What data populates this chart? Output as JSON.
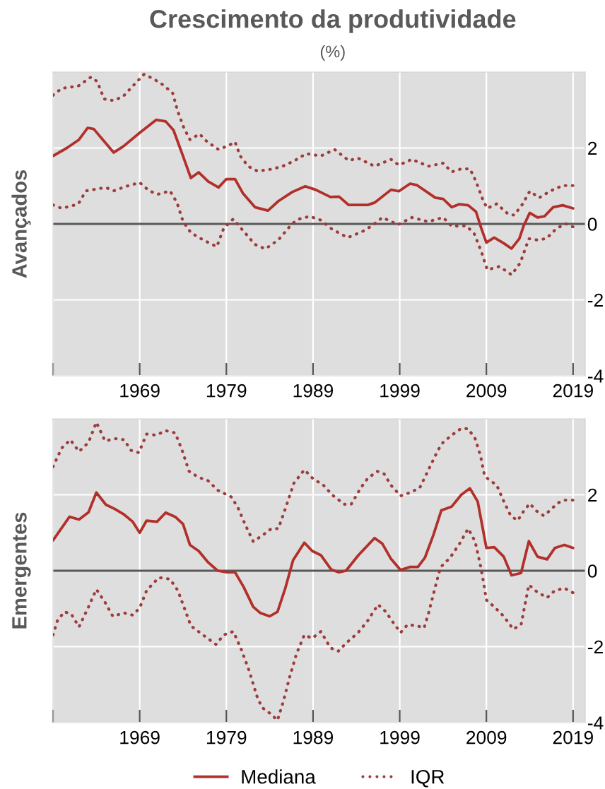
{
  "chart_data": [
    {
      "type": "line",
      "title": "Crescimento da produtividade",
      "subtitle": "(%)",
      "ylabel": "Avançados",
      "xlim": [
        1959,
        2020.4
      ],
      "xticks": [
        {
          "value": 1959,
          "label": null
        },
        1969,
        1979,
        1989,
        1999,
        2009,
        2019
      ],
      "ylim": [
        -4,
        4
      ],
      "yticks": [
        -4,
        -2,
        0,
        2
      ],
      "grid": true,
      "ref_lines": [
        {
          "axis": "y",
          "value": 0,
          "color": "#595959"
        }
      ],
      "series": [
        {
          "color": "#b22f2a",
          "line_style": "solid",
          "x": [
            1959,
            1960.6,
            1962.0,
            1963.0,
            1963.7,
            1966.0,
            1967.1,
            1969.0,
            1970.9,
            1972.0,
            1972.9,
            1973.9,
            1974.9,
            1975.8,
            1976.9,
            1978.1,
            1979.0,
            1980.0,
            1980.9,
            1982.3,
            1983.8,
            1985.0,
            1986.6,
            1988.1,
            1989.3,
            1991.0,
            1992.0,
            1993.1,
            1995.3,
            1996.1,
            1998.0,
            1998.9,
            2000.2,
            2001.0,
            2003.1,
            2004.0,
            2005.0,
            2005.9,
            2006.9,
            2007.8,
            2008.4,
            2009.0,
            2009.9,
            2011.0,
            2011.9,
            2012.8,
            2013.3,
            2014.0,
            2014.9,
            2015.7,
            2016.7,
            2017.8,
            2019.0
          ],
          "values": [
            1.79,
            2.0,
            2.22,
            2.53,
            2.5,
            1.88,
            2.04,
            2.4,
            2.74,
            2.7,
            2.47,
            1.85,
            1.21,
            1.36,
            1.12,
            0.96,
            1.18,
            1.18,
            0.81,
            0.44,
            0.35,
            0.6,
            0.84,
            0.99,
            0.9,
            0.71,
            0.72,
            0.5,
            0.5,
            0.56,
            0.9,
            0.86,
            1.06,
            1.02,
            0.69,
            0.66,
            0.44,
            0.52,
            0.49,
            0.32,
            -0.11,
            -0.49,
            -0.36,
            -0.51,
            -0.65,
            -0.39,
            -0.05,
            0.29,
            0.17,
            0.2,
            0.44,
            0.49,
            0.41
          ]
        },
        {
          "color": "#9e3b3b",
          "line_style": "dotted",
          "x": [
            1959,
            1960.0,
            1961.9,
            1963.4,
            1964.1,
            1964.9,
            1966.0,
            1967.1,
            1968.2,
            1969.5,
            1970.6,
            1971.7,
            1972.8,
            1973.4,
            1974.1,
            1974.8,
            1975.9,
            1976.8,
            1978.1,
            1979.3,
            1980.0,
            1980.6,
            1981.5,
            1982.6,
            1984.2,
            1985.5,
            1986.9,
            1988.2,
            1989.9,
            1991.5,
            1993.1,
            1994.2,
            1996.1,
            1998.0,
            1998.9,
            2000.4,
            2002.3,
            2004.0,
            2005.0,
            2006.1,
            2007.1,
            2007.8,
            2008.6,
            2009.1,
            2010.2,
            2011.5,
            2012.2,
            2013.2,
            2014.0,
            2015.1,
            2016.4,
            2017.8,
            2019.0
          ],
          "values": [
            3.39,
            3.57,
            3.63,
            3.87,
            3.75,
            3.29,
            3.25,
            3.36,
            3.63,
            3.94,
            3.82,
            3.66,
            3.45,
            2.96,
            2.53,
            2.22,
            2.37,
            2.16,
            1.96,
            2.07,
            2.16,
            1.79,
            1.52,
            1.39,
            1.44,
            1.52,
            1.67,
            1.85,
            1.79,
            1.96,
            1.67,
            1.73,
            1.52,
            1.7,
            1.55,
            1.7,
            1.52,
            1.6,
            1.37,
            1.45,
            1.45,
            1.12,
            0.63,
            0.41,
            0.53,
            0.26,
            0.23,
            0.53,
            0.86,
            0.69,
            0.87,
            1.01,
            1.01
          ]
        },
        {
          "color": "#9e3b3b",
          "line_style": "dotted",
          "x": [
            1959,
            1960.0,
            1961.9,
            1962.8,
            1965.1,
            1966.0,
            1967.3,
            1969.0,
            1970.1,
            1971.1,
            1972.5,
            1973.3,
            1974.0,
            1974.9,
            1976.3,
            1977.9,
            1978.7,
            1979.8,
            1980.9,
            1982.3,
            1983.5,
            1985.0,
            1986.6,
            1987.4,
            1988.6,
            1989.9,
            1991.2,
            1993.0,
            1994.7,
            1995.8,
            1997.0,
            1998.8,
            2000.4,
            2002.3,
            2004.0,
            2005.0,
            2006.7,
            2007.6,
            2008.4,
            2009.1,
            2010.5,
            2011.9,
            2012.9,
            2013.9,
            2014.8,
            2015.9,
            2017.0,
            2018.1,
            2019.0
          ],
          "values": [
            0.5,
            0.41,
            0.52,
            0.87,
            0.96,
            0.87,
            0.98,
            1.09,
            0.87,
            0.78,
            0.87,
            0.56,
            0.07,
            -0.23,
            -0.42,
            -0.6,
            -0.11,
            0.13,
            -0.17,
            -0.54,
            -0.66,
            -0.42,
            0.01,
            0.13,
            0.2,
            0.1,
            -0.14,
            -0.36,
            -0.2,
            -0.05,
            0.17,
            -0.02,
            0.17,
            0.06,
            0.17,
            -0.06,
            -0.05,
            -0.26,
            -0.72,
            -1.21,
            -1.12,
            -1.34,
            -1.03,
            -0.39,
            -0.42,
            -0.39,
            -0.14,
            0.01,
            -0.08
          ]
        }
      ]
    },
    {
      "type": "line",
      "ylabel": "Emergentes",
      "xlim": [
        1959,
        2020.4
      ],
      "xticks": [
        {
          "value": 1959,
          "label": null
        },
        1969,
        1979,
        1989,
        1999,
        2009,
        2019
      ],
      "ylim": [
        -4,
        4
      ],
      "yticks": [
        -4,
        -2,
        0,
        2
      ],
      "grid": true,
      "legend": "bottom",
      "ref_lines": [
        {
          "axis": "y",
          "value": 0,
          "color": "#595959"
        }
      ],
      "series": [
        {
          "name": "Mediana",
          "color": "#b22f2a",
          "line_style": "solid",
          "x": [
            1959,
            1960.9,
            1962.0,
            1963.1,
            1964.0,
            1965.1,
            1966.1,
            1967.2,
            1968.2,
            1969.0,
            1969.8,
            1971.0,
            1972.0,
            1973.1,
            1974.0,
            1974.8,
            1975.8,
            1976.9,
            1978.0,
            1979.1,
            1980.0,
            1981.0,
            1982.1,
            1982.9,
            1984.0,
            1984.9,
            1985.8,
            1986.7,
            1988.0,
            1988.9,
            1989.9,
            1991.1,
            1992.0,
            1992.8,
            1994.2,
            1996.1,
            1997.0,
            1998.0,
            1999.1,
            2000.2,
            2001.1,
            2001.9,
            2002.9,
            2003.8,
            2005.0,
            2006.1,
            2007.1,
            2008.0,
            2009.0,
            2009.9,
            2011.0,
            2011.9,
            2013.0,
            2013.9,
            2014.9,
            2016.0,
            2016.9,
            2018.0,
            2019.0
          ],
          "values": [
            0.8,
            1.42,
            1.35,
            1.54,
            2.06,
            1.74,
            1.63,
            1.48,
            1.29,
            1.0,
            1.32,
            1.29,
            1.53,
            1.42,
            1.23,
            0.68,
            0.52,
            0.22,
            0.0,
            -0.04,
            -0.04,
            -0.43,
            -0.95,
            -1.11,
            -1.2,
            -1.08,
            -0.46,
            0.28,
            0.74,
            0.52,
            0.41,
            0.03,
            -0.04,
            0.0,
            0.4,
            0.86,
            0.71,
            0.31,
            0.02,
            0.1,
            0.1,
            0.34,
            0.95,
            1.59,
            1.69,
            2.0,
            2.17,
            1.82,
            0.6,
            0.62,
            0.37,
            -0.12,
            -0.06,
            0.78,
            0.37,
            0.3,
            0.6,
            0.68,
            0.6
          ]
        },
        {
          "name": "IQR",
          "color": "#9e3b3b",
          "line_style": "dotted",
          "x": [
            1959,
            1960.0,
            1961.0,
            1962.0,
            1963.1,
            1964.0,
            1965.0,
            1966.3,
            1967.2,
            1968.0,
            1968.9,
            1969.8,
            1970.9,
            1972.0,
            1973.1,
            1973.9,
            1974.7,
            1975.8,
            1976.9,
            1978.0,
            1979.6,
            1980.4,
            1981.2,
            1982.1,
            1983.1,
            1984.2,
            1985.0,
            1985.8,
            1986.8,
            1988.0,
            1989.1,
            1990.1,
            1991.2,
            1992.6,
            1993.4,
            1994.5,
            1995.3,
            1996.4,
            1997.2,
            1998.0,
            1999.1,
            2000.2,
            2001.3,
            2002.3,
            2003.4,
            2004.0,
            2005.0,
            2006.1,
            2006.9,
            2007.7,
            2008.3,
            2008.8,
            2009.3,
            2010.2,
            2010.9,
            2011.8,
            2012.6,
            2013.3,
            2014.0,
            2014.8,
            2015.6,
            2016.4,
            2017.2,
            2018.0,
            2019.0
          ],
          "values": [
            2.74,
            3.23,
            3.45,
            3.14,
            3.38,
            3.91,
            3.42,
            3.48,
            3.45,
            3.17,
            3.11,
            3.6,
            3.57,
            3.69,
            3.63,
            3.17,
            2.62,
            2.46,
            2.37,
            2.12,
            1.94,
            1.63,
            1.2,
            0.77,
            0.92,
            1.11,
            1.11,
            1.63,
            2.31,
            2.66,
            2.4,
            2.28,
            2.0,
            1.75,
            1.75,
            2.18,
            2.43,
            2.62,
            2.55,
            2.25,
            1.97,
            2.06,
            2.18,
            2.65,
            3.17,
            3.38,
            3.57,
            3.75,
            3.74,
            3.48,
            3.05,
            2.49,
            2.4,
            2.25,
            1.88,
            1.45,
            1.32,
            1.57,
            1.77,
            1.57,
            1.45,
            1.6,
            1.78,
            1.86,
            1.86
          ]
        },
        {
          "color": "#9e3b3b",
          "line_style": "dotted",
          "x": [
            1959,
            1959.5,
            1960.3,
            1961.1,
            1962.0,
            1963.1,
            1964.0,
            1965.0,
            1965.9,
            1967.2,
            1968.2,
            1969.0,
            1969.8,
            1971.2,
            1972.5,
            1973.4,
            1974.1,
            1974.9,
            1976.3,
            1977.8,
            1978.7,
            1979.8,
            1980.7,
            1981.7,
            1982.5,
            1983.1,
            1984.0,
            1984.9,
            1985.6,
            1986.3,
            1987.1,
            1988.0,
            1988.9,
            1989.9,
            1991.0,
            1991.9,
            1992.8,
            1994.2,
            1995.3,
            1996.5,
            1997.4,
            1998.2,
            1999.1,
            1999.9,
            2001.0,
            2001.8,
            2002.3,
            2003.2,
            2003.7,
            2004.8,
            2005.9,
            2006.9,
            2007.7,
            2008.3,
            2008.7,
            2009.0,
            2009.9,
            2011.0,
            2012.1,
            2013.0,
            2013.9,
            2014.8,
            2016.0,
            2016.9,
            2018.0,
            2019.0
          ],
          "values": [
            -1.69,
            -1.32,
            -1.08,
            -1.14,
            -1.48,
            -0.95,
            -0.49,
            -0.83,
            -1.2,
            -1.11,
            -1.17,
            -0.98,
            -0.52,
            -0.18,
            -0.22,
            -0.52,
            -0.95,
            -1.45,
            -1.69,
            -1.94,
            -1.69,
            -1.6,
            -2.06,
            -2.68,
            -3.29,
            -3.6,
            -3.75,
            -3.94,
            -3.42,
            -2.8,
            -2.18,
            -1.69,
            -1.78,
            -1.6,
            -2.03,
            -2.12,
            -1.91,
            -1.63,
            -1.32,
            -0.89,
            -1.08,
            -1.35,
            -1.63,
            -1.42,
            -1.45,
            -1.51,
            -1.14,
            -0.34,
            0.09,
            0.34,
            0.71,
            1.11,
            0.77,
            0.15,
            -0.34,
            -0.77,
            -0.95,
            -1.2,
            -1.54,
            -1.42,
            -0.37,
            -0.55,
            -0.71,
            -0.52,
            -0.46,
            -0.58
          ]
        }
      ]
    }
  ]
}
